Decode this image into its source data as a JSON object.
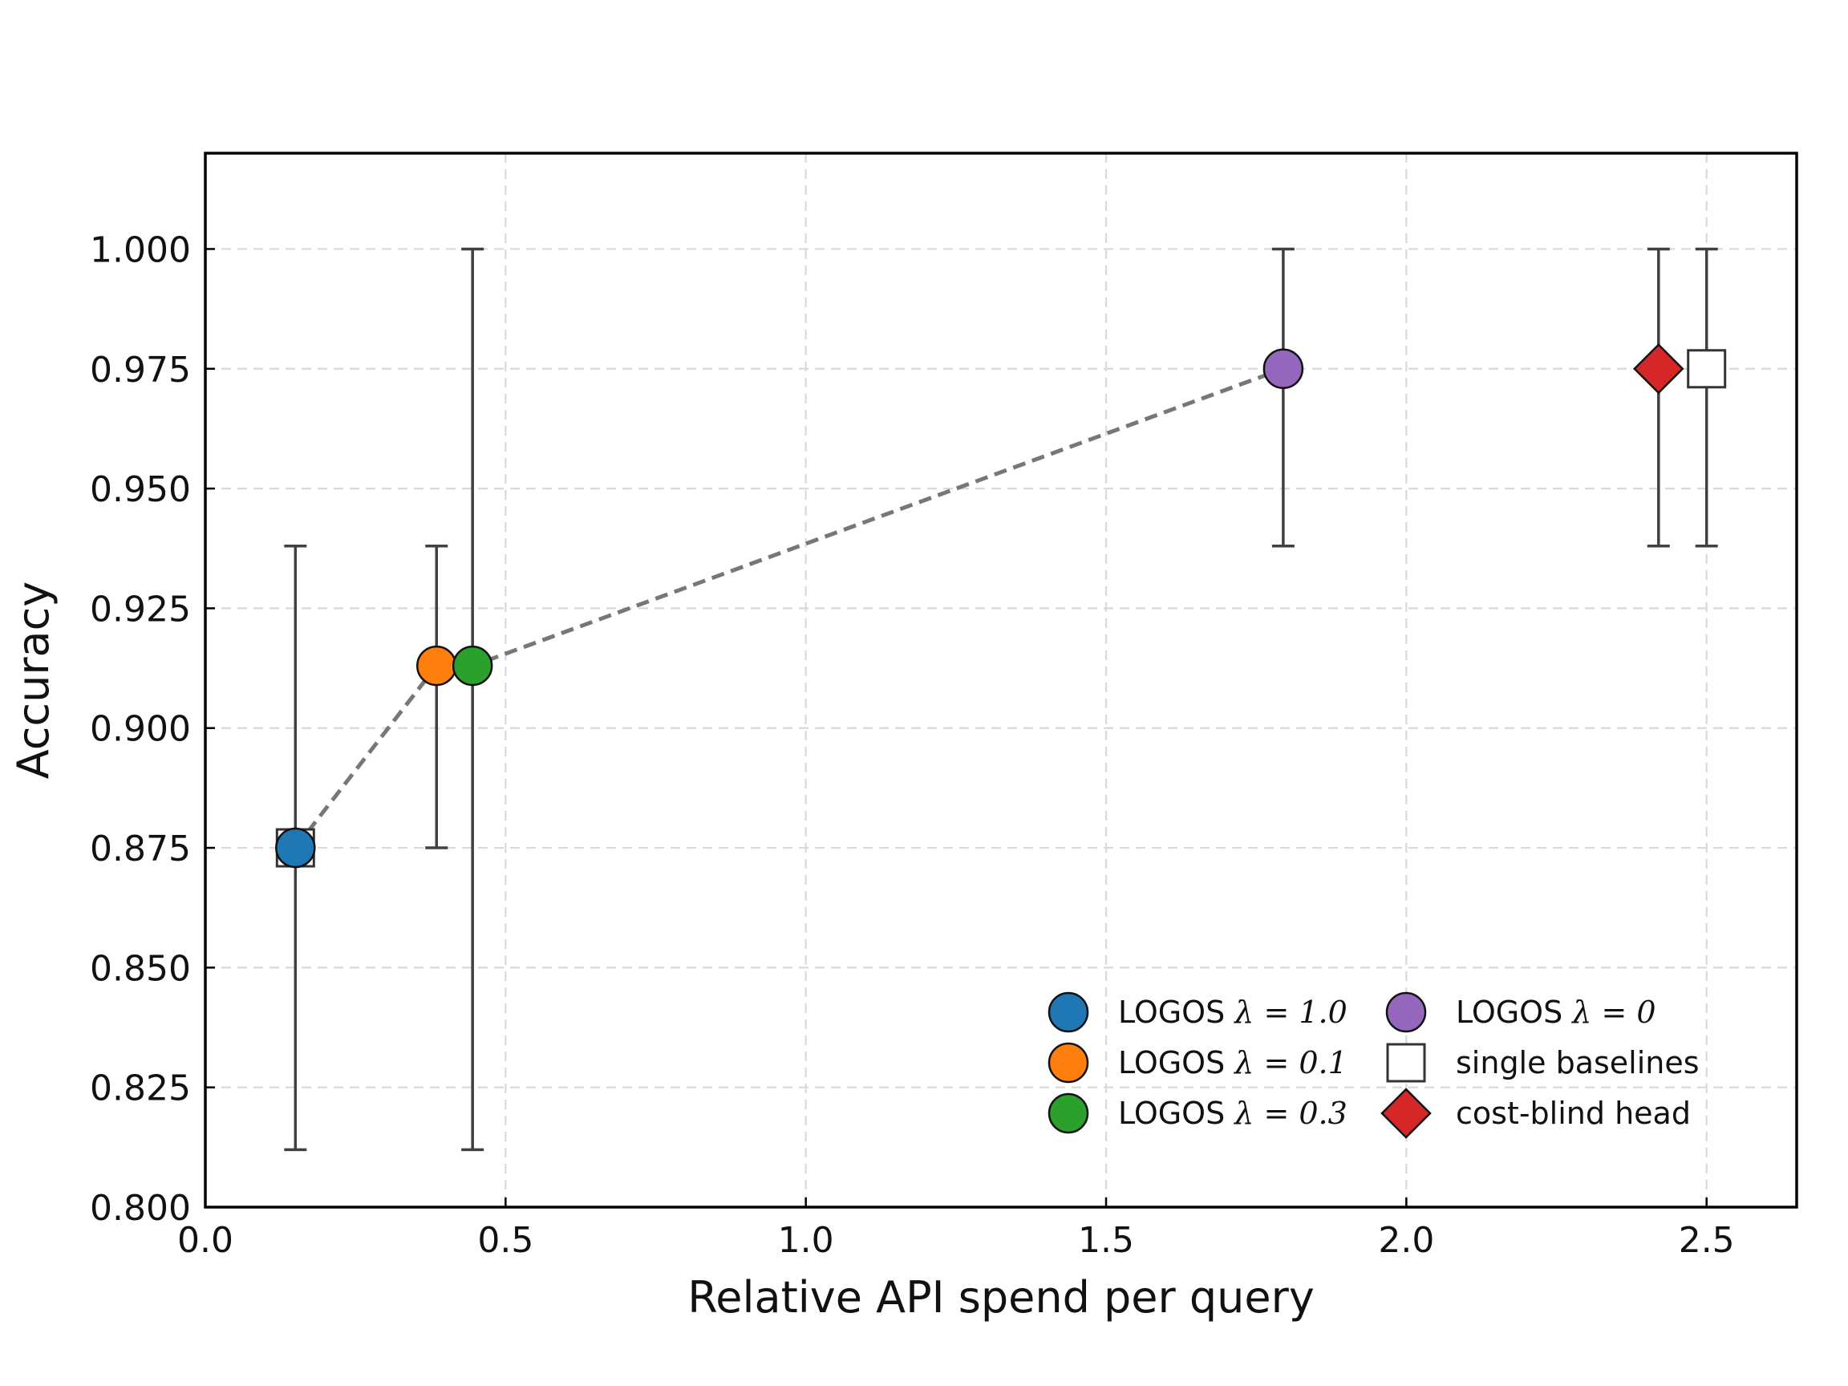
{
  "chart_data": {
    "type": "scatter",
    "title": "",
    "xlabel": "Relative API spend per query",
    "ylabel": "Accuracy",
    "xlim": [
      0.0,
      2.65
    ],
    "ylim": [
      0.8,
      1.02
    ],
    "xticks": [
      "0.0",
      "0.5",
      "1.0",
      "1.5",
      "2.0",
      "2.5"
    ],
    "yticks": [
      "0.800",
      "0.825",
      "0.850",
      "0.875",
      "0.900",
      "0.925",
      "0.950",
      "0.975",
      "1.000"
    ],
    "grid": true,
    "legend_position": "lower-right",
    "frontier_line": {
      "style": "dashed",
      "color": "#777777",
      "x": [
        0.15,
        0.385,
        0.445,
        1.795
      ],
      "y": [
        0.875,
        0.913,
        0.913,
        0.975
      ]
    },
    "series": [
      {
        "name_prefix": "LOGOS ",
        "name_math": "λ = 1.0",
        "marker": "circle",
        "color": "#1f77b4",
        "x": 0.15,
        "y": 0.875,
        "err_low": 0.812,
        "err_high": 0.938
      },
      {
        "name_prefix": "LOGOS ",
        "name_math": "λ = 0.1",
        "marker": "circle",
        "color": "#ff7f0e",
        "x": 0.385,
        "y": 0.913,
        "err_low": 0.875,
        "err_high": 0.938
      },
      {
        "name_prefix": "LOGOS ",
        "name_math": "λ = 0.3",
        "marker": "circle",
        "color": "#2ca02c",
        "x": 0.445,
        "y": 0.913,
        "err_low": 0.812,
        "err_high": 1.0
      },
      {
        "name_prefix": "LOGOS ",
        "name_math": "λ = 0",
        "marker": "circle",
        "color": "#9467bd",
        "x": 1.795,
        "y": 0.975,
        "err_low": 0.938,
        "err_high": 1.0
      },
      {
        "name_prefix": "single baselines",
        "name_math": "",
        "marker": "square",
        "color": "#ffffff",
        "points": [
          {
            "x": 0.15,
            "y": 0.875
          },
          {
            "x": 2.5,
            "y": 0.975,
            "err_low": 0.938,
            "err_high": 1.0
          }
        ]
      },
      {
        "name_prefix": "cost-blind head",
        "name_math": "",
        "marker": "diamond",
        "color": "#d62728",
        "x": 2.42,
        "y": 0.975,
        "err_low": 0.938,
        "err_high": 1.0
      }
    ]
  }
}
